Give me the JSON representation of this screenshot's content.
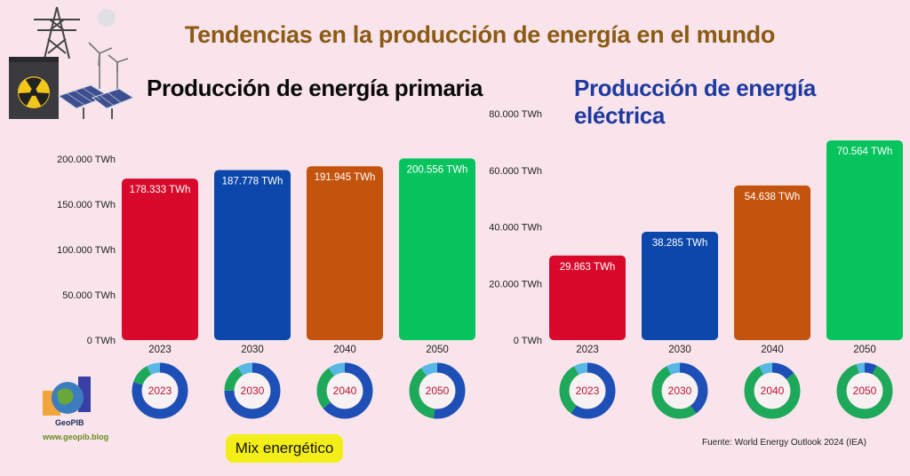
{
  "title": "Tendencias en la producción de energía en el mundo",
  "left_title": "Producción de energía primaria",
  "right_title": "Producción de energía eléctrica",
  "mix_label": "Mix energético",
  "source": "Fuente: World Energy Outlook 2024 (IEA)",
  "brand": {
    "name": "GeoPIB",
    "url": "www.geopib.blog"
  },
  "colors": {
    "2023": "#d8092b",
    "2030": "#0c48ab",
    "2040": "#c4530e",
    "2050": "#07c35e"
  },
  "chart_data": [
    {
      "type": "bar",
      "title": "Producción de energía primaria",
      "categories": [
        "2023",
        "2030",
        "2040",
        "2050"
      ],
      "values": [
        178333,
        187778,
        191945,
        200556
      ],
      "value_labels": [
        "178.333 TWh",
        "187.778 TWh",
        "191.945 TWh",
        "200.556 TWh"
      ],
      "yticks": [
        0,
        50000,
        100000,
        150000,
        200000
      ],
      "ytick_labels": [
        "0 TWh",
        "50.000 TWh",
        "100.000 TWh",
        "150.000 TWh",
        "200.000 TWh"
      ],
      "ylim": [
        0,
        250000
      ],
      "grid": false
    },
    {
      "type": "bar",
      "title": "Producción de energía eléctrica",
      "categories": [
        "2023",
        "2030",
        "2040",
        "2050"
      ],
      "values": [
        29863,
        38285,
        54638,
        70564
      ],
      "value_labels": [
        "29.863 TWh",
        "38.285 TWh",
        "54.638 TWh",
        "70.564 TWh"
      ],
      "yticks": [
        0,
        20000,
        40000,
        60000,
        80000
      ],
      "ytick_labels": [
        "0 TWh",
        "20.000 TWh",
        "40.000 TWh",
        "60.000 TWh",
        "80.000 TWh"
      ],
      "ylim": [
        0,
        80000
      ],
      "grid": false
    }
  ],
  "donuts": {
    "primary": [
      {
        "year": "2023",
        "segments": [
          {
            "color": "#1d4fb6",
            "value": 80
          },
          {
            "color": "#1ea85a",
            "value": 12
          },
          {
            "color": "#57b8e6",
            "value": 8
          }
        ]
      },
      {
        "year": "2030",
        "segments": [
          {
            "color": "#1d4fb6",
            "value": 75
          },
          {
            "color": "#1ea85a",
            "value": 16
          },
          {
            "color": "#57b8e6",
            "value": 9
          }
        ]
      },
      {
        "year": "2040",
        "segments": [
          {
            "color": "#1d4fb6",
            "value": 64
          },
          {
            "color": "#1ea85a",
            "value": 26
          },
          {
            "color": "#57b8e6",
            "value": 10
          }
        ]
      },
      {
        "year": "2050",
        "segments": [
          {
            "color": "#1d4fb6",
            "value": 52
          },
          {
            "color": "#1ea85a",
            "value": 38
          },
          {
            "color": "#57b8e6",
            "value": 10
          }
        ]
      }
    ],
    "electric": [
      {
        "year": "2023",
        "segments": [
          {
            "color": "#1d4fb6",
            "value": 60
          },
          {
            "color": "#1ea85a",
            "value": 32
          },
          {
            "color": "#57b8e6",
            "value": 8
          }
        ]
      },
      {
        "year": "2030",
        "segments": [
          {
            "color": "#1d4fb6",
            "value": 40
          },
          {
            "color": "#1ea85a",
            "value": 52
          },
          {
            "color": "#57b8e6",
            "value": 8
          }
        ]
      },
      {
        "year": "2040",
        "segments": [
          {
            "color": "#1d4fb6",
            "value": 14
          },
          {
            "color": "#1ea85a",
            "value": 78
          },
          {
            "color": "#57b8e6",
            "value": 8
          }
        ]
      },
      {
        "year": "2050",
        "segments": [
          {
            "color": "#1d4fb6",
            "value": 7
          },
          {
            "color": "#1ea85a",
            "value": 88
          },
          {
            "color": "#57b8e6",
            "value": 5
          }
        ]
      }
    ]
  }
}
